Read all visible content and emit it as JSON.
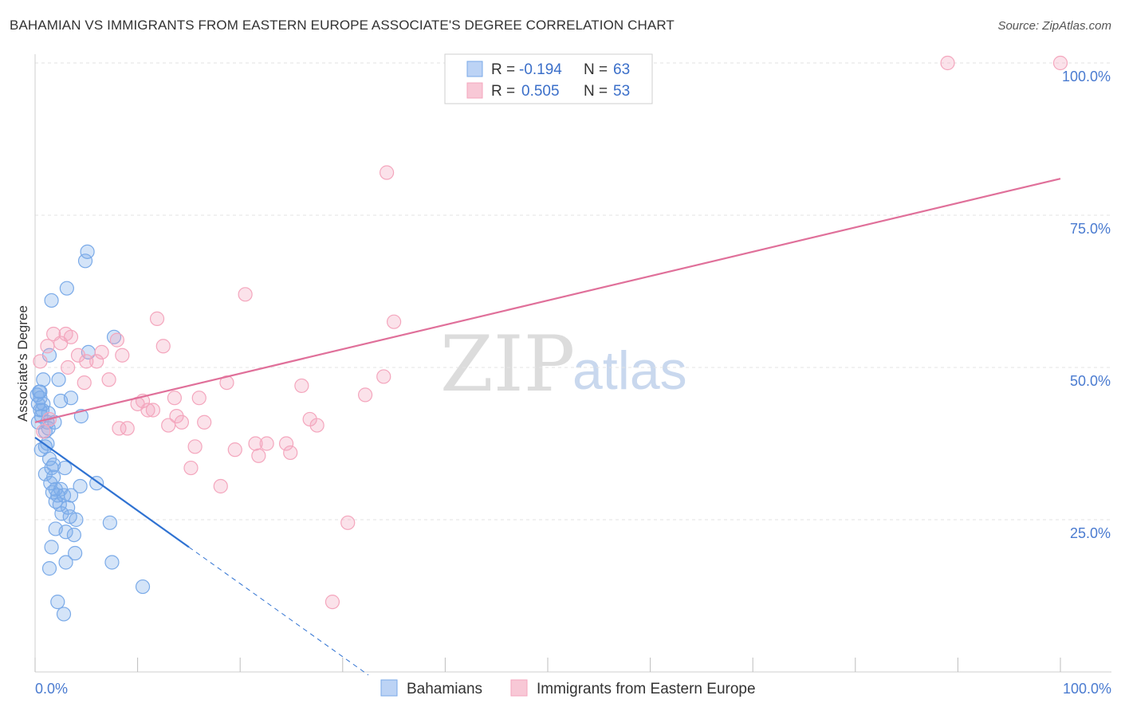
{
  "header": {
    "title": "BAHAMIAN VS IMMIGRANTS FROM EASTERN EUROPE ASSOCIATE'S DEGREE CORRELATION CHART",
    "source": "Source: ZipAtlas.com"
  },
  "watermark": {
    "zip": "ZIP",
    "atlas": "atlas"
  },
  "chart_data": {
    "type": "scatter",
    "title": "BAHAMIAN VS IMMIGRANTS FROM EASTERN EUROPE ASSOCIATE'S DEGREE CORRELATION CHART",
    "xlabel": "",
    "ylabel": "Associate's Degree",
    "xlim": [
      0,
      100
    ],
    "ylim": [
      0,
      100
    ],
    "x_tick_labels": {
      "left": "0.0%",
      "right": "100.0%"
    },
    "y_ticks": [
      {
        "value": 25,
        "label": "25.0%"
      },
      {
        "value": 50,
        "label": "50.0%"
      },
      {
        "value": 75,
        "label": "75.0%"
      },
      {
        "value": 100,
        "label": "100.0%"
      }
    ],
    "legend": {
      "r_label": "R =",
      "n_label": "N =",
      "entries": [
        {
          "r": "-0.194",
          "n": "63"
        },
        {
          "r": "0.505",
          "n": "53"
        }
      ]
    },
    "series": [
      {
        "name": "Bahamians",
        "color": "#7aaae8",
        "line_color": "#2f72d2",
        "trend": {
          "x0": 0,
          "y0": 38.5,
          "x1": 15,
          "y1": 20.5,
          "dash_to_x": 32.5,
          "dash_to_y": -0.5
        },
        "points": [
          [
            0.2,
            45.5
          ],
          [
            0.3,
            44
          ],
          [
            0.4,
            46
          ],
          [
            0.5,
            43
          ],
          [
            0.6,
            42
          ],
          [
            0.8,
            44
          ],
          [
            0.8,
            48
          ],
          [
            1.0,
            37
          ],
          [
            1.2,
            41
          ],
          [
            1.3,
            42.5
          ],
          [
            0.6,
            36.5
          ],
          [
            1.4,
            35
          ],
          [
            1.6,
            33.5
          ],
          [
            1.8,
            34
          ],
          [
            1.0,
            32.5
          ],
          [
            1.5,
            31
          ],
          [
            1.8,
            32
          ],
          [
            2.0,
            30
          ],
          [
            2.2,
            29
          ],
          [
            2.5,
            30
          ],
          [
            2.0,
            28
          ],
          [
            2.4,
            27.5
          ],
          [
            2.8,
            29
          ],
          [
            3.2,
            27
          ],
          [
            3.5,
            29
          ],
          [
            3.4,
            25.5
          ],
          [
            4.0,
            25
          ],
          [
            3.0,
            23
          ],
          [
            2.0,
            23.5
          ],
          [
            3.8,
            22.5
          ],
          [
            1.6,
            20.5
          ],
          [
            3.9,
            19.5
          ],
          [
            3.0,
            18
          ],
          [
            1.4,
            17
          ],
          [
            7.5,
            18
          ],
          [
            10.5,
            14
          ],
          [
            2.2,
            11.5
          ],
          [
            2.8,
            9.5
          ],
          [
            1.4,
            52
          ],
          [
            2.3,
            48
          ],
          [
            2.5,
            44.5
          ],
          [
            3.5,
            45
          ],
          [
            4.5,
            42
          ],
          [
            0.5,
            46
          ],
          [
            0.5,
            45
          ],
          [
            0.7,
            43
          ],
          [
            1.3,
            40
          ],
          [
            1.6,
            61
          ],
          [
            3.1,
            63
          ],
          [
            5.1,
            69
          ],
          [
            4.9,
            67.5
          ],
          [
            5.2,
            52.5
          ],
          [
            7.7,
            55
          ],
          [
            7.3,
            24.5
          ],
          [
            6.0,
            31
          ],
          [
            4.4,
            30.5
          ],
          [
            1.2,
            37.5
          ],
          [
            1.0,
            39.5
          ],
          [
            0.3,
            41
          ],
          [
            1.9,
            41
          ],
          [
            2.9,
            33.5
          ],
          [
            1.7,
            29.5
          ],
          [
            2.6,
            26
          ]
        ]
      },
      {
        "name": "Immigrants from Eastern Europe",
        "color": "#f4a6bd",
        "line_color": "#e0709a",
        "trend": {
          "x0": 0,
          "y0": 41,
          "x1": 100,
          "y1": 81
        },
        "points": [
          [
            0.5,
            51
          ],
          [
            1.2,
            53.5
          ],
          [
            1.8,
            55.5
          ],
          [
            2.5,
            54
          ],
          [
            3.0,
            55.5
          ],
          [
            3.5,
            55
          ],
          [
            3.2,
            50
          ],
          [
            4.2,
            52
          ],
          [
            4.8,
            47.5
          ],
          [
            5.0,
            51
          ],
          [
            6.0,
            51
          ],
          [
            6.5,
            52.5
          ],
          [
            7.2,
            48
          ],
          [
            8.0,
            54.5
          ],
          [
            8.5,
            52
          ],
          [
            8.2,
            40
          ],
          [
            9.0,
            40
          ],
          [
            10.0,
            44
          ],
          [
            10.5,
            44.5
          ],
          [
            11.0,
            43
          ],
          [
            11.5,
            43
          ],
          [
            11.9,
            58
          ],
          [
            12.5,
            53.5
          ],
          [
            13.0,
            40.5
          ],
          [
            13.6,
            45
          ],
          [
            13.8,
            42
          ],
          [
            14.3,
            41
          ],
          [
            15.6,
            37
          ],
          [
            16.0,
            45
          ],
          [
            16.5,
            41
          ],
          [
            15.2,
            33.5
          ],
          [
            18.1,
            30.5
          ],
          [
            18.7,
            47.5
          ],
          [
            19.5,
            36.5
          ],
          [
            20.5,
            62
          ],
          [
            21.5,
            37.5
          ],
          [
            21.8,
            35.5
          ],
          [
            22.6,
            37.5
          ],
          [
            24.5,
            37.5
          ],
          [
            24.9,
            36
          ],
          [
            26.0,
            47
          ],
          [
            26.8,
            41.5
          ],
          [
            27.5,
            40.5
          ],
          [
            30.5,
            24.5
          ],
          [
            32.2,
            45.5
          ],
          [
            34.0,
            48.5
          ],
          [
            35.0,
            57.5
          ],
          [
            29.0,
            11.5
          ],
          [
            34.3,
            82
          ],
          [
            89.0,
            100
          ],
          [
            100,
            100
          ],
          [
            1.4,
            41.5
          ],
          [
            0.8,
            39.5
          ]
        ]
      }
    ]
  }
}
